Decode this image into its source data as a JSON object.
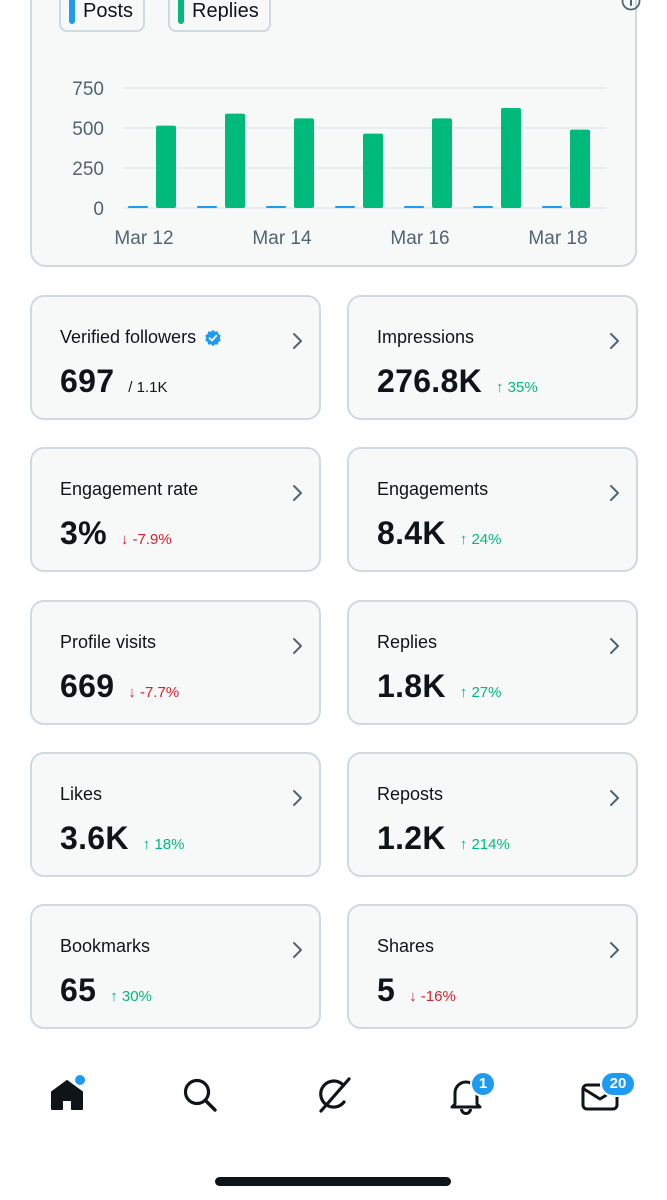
{
  "colors": {
    "posts": "#1d9bf0",
    "replies": "#00ba7c",
    "up": "#00ba7c",
    "down": "#d9202b",
    "accent": "#1d9bf0"
  },
  "legend": {
    "posts_label": "Posts",
    "replies_label": "Replies"
  },
  "chart_data": {
    "type": "bar",
    "categories": [
      "Mar 12",
      "Mar 13",
      "Mar 14",
      "Mar 15",
      "Mar 16",
      "Mar 17",
      "Mar 18"
    ],
    "x_tick_labels": [
      "Mar 12",
      "Mar 14",
      "Mar 16",
      "Mar 18"
    ],
    "y_tick_labels": [
      "0",
      "250",
      "500",
      "750"
    ],
    "ylim": [
      0,
      750
    ],
    "grid": true,
    "legend_position": "top-left",
    "series": [
      {
        "name": "Posts",
        "values": [
          5,
          7,
          10,
          8,
          6,
          5,
          4
        ]
      },
      {
        "name": "Replies",
        "values": [
          515,
          590,
          560,
          465,
          560,
          625,
          490
        ]
      }
    ]
  },
  "stats": [
    {
      "title": "Verified followers",
      "value": "697",
      "sub": "/ 1.1K",
      "change": "",
      "direction": "",
      "verified": true
    },
    {
      "title": "Impressions",
      "value": "276.8K",
      "sub": "",
      "change": "35%",
      "direction": "up"
    },
    {
      "title": "Engagement rate",
      "value": "3%",
      "sub": "",
      "change": "-7.9%",
      "direction": "down"
    },
    {
      "title": "Engagements",
      "value": "8.4K",
      "sub": "",
      "change": "24%",
      "direction": "up"
    },
    {
      "title": "Profile visits",
      "value": "669",
      "sub": "",
      "change": "-7.7%",
      "direction": "down"
    },
    {
      "title": "Replies",
      "value": "1.8K",
      "sub": "",
      "change": "27%",
      "direction": "up"
    },
    {
      "title": "Likes",
      "value": "3.6K",
      "sub": "",
      "change": "18%",
      "direction": "up"
    },
    {
      "title": "Reposts",
      "value": "1.2K",
      "sub": "",
      "change": "214%",
      "direction": "up"
    },
    {
      "title": "Bookmarks",
      "value": "65",
      "sub": "",
      "change": "30%",
      "direction": "up"
    },
    {
      "title": "Shares",
      "value": "5",
      "sub": "",
      "change": "-16%",
      "direction": "down"
    }
  ],
  "tabbar": {
    "icons": [
      "home-icon",
      "search-icon",
      "grok-icon",
      "notifications-icon",
      "messages-icon"
    ],
    "notifications_badge": "1",
    "messages_badge": "20"
  }
}
